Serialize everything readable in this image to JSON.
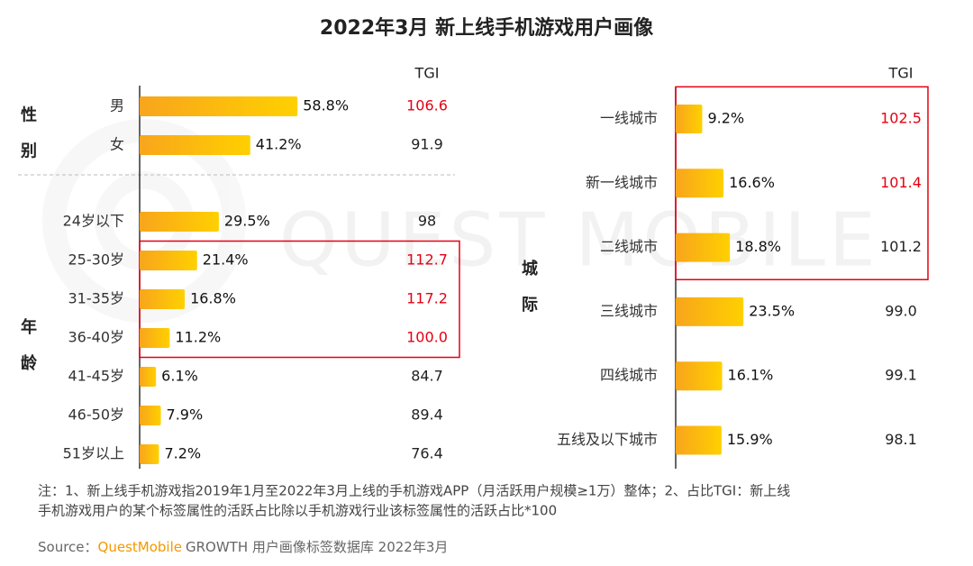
{
  "title": "2022年3月 新上线手机游戏用户画像",
  "watermark": "QUEST MOBILE",
  "note": [
    "注：1、新上线手机游戏指2019年1月至2022年3月上线的手机游戏APP（月活跃用户规模≥1万）整体；2、占比TGI：新上线",
    "手机游戏用户的某个标签属性的活跃占比除以手机游戏行业该标签属性的活跃占比*100"
  ],
  "source": {
    "prefix": "Source：",
    "brand": "QuestMobile",
    "text": "GROWTH 用户画像标签数据库 2022年3月"
  },
  "chart_data": [
    {
      "type": "bar",
      "orientation": "horizontal",
      "color": "#ffd000",
      "categories": [
        "男",
        "女",
        "24岁以下",
        "25-30岁",
        "31-35岁",
        "36-40岁",
        "41-45岁",
        "46-50岁",
        "51岁以上"
      ],
      "groups": [
        "性别",
        "性别",
        "年龄",
        "年龄",
        "年龄",
        "年龄",
        "年龄",
        "年龄",
        "年龄"
      ],
      "values": [
        58.8,
        41.2,
        29.5,
        21.4,
        16.8,
        11.2,
        6.1,
        7.9,
        7.2
      ],
      "value_labels": [
        "58.8%",
        "41.2%",
        "29.5%",
        "21.4%",
        "16.8%",
        "11.2%",
        "6.1%",
        "7.9%",
        "7.2%"
      ],
      "tgi": {
        "header": "TGI",
        "values": [
          106.6,
          91.9,
          98,
          112.7,
          117.2,
          {
            "value": 100,
            "label": "100.0"
          },
          84.7,
          89.4,
          76.4
        ],
        "colors": [
          "#e60012",
          "#222222",
          "#222222",
          "#e60012",
          "#e60012",
          "#e60012",
          "#222222",
          "#222222",
          "#222222"
        ]
      },
      "boxed": [
        false,
        false,
        false,
        true,
        true,
        true,
        false,
        false,
        false
      ]
    },
    {
      "type": "bar",
      "orientation": "horizontal",
      "color": "#ffd000",
      "categories": [
        "一线城市",
        "新一线城市",
        "二线城市",
        "三线城市",
        "四线城市",
        "五线及以下城市"
      ],
      "groups": [
        "城际",
        "城际",
        "城际",
        "城际",
        "城际",
        "城际"
      ],
      "values": [
        9.2,
        16.6,
        18.8,
        23.5,
        16.1,
        15.9
      ],
      "value_labels": [
        "9.2%",
        "16.6%",
        "18.8%",
        "23.5%",
        "16.1%",
        "15.9%"
      ],
      "tgi": {
        "header": "TGI",
        "values": [
          102.5,
          101.4,
          101.2,
          {
            "value": 99,
            "label": "99.0"
          },
          99.1,
          98.1
        ],
        "colors": [
          "#e60012",
          "#e60012",
          "#222222",
          "#222222",
          "#222222",
          "#222222"
        ]
      },
      "boxed": [
        true,
        true,
        true,
        false,
        false,
        false
      ]
    }
  ]
}
